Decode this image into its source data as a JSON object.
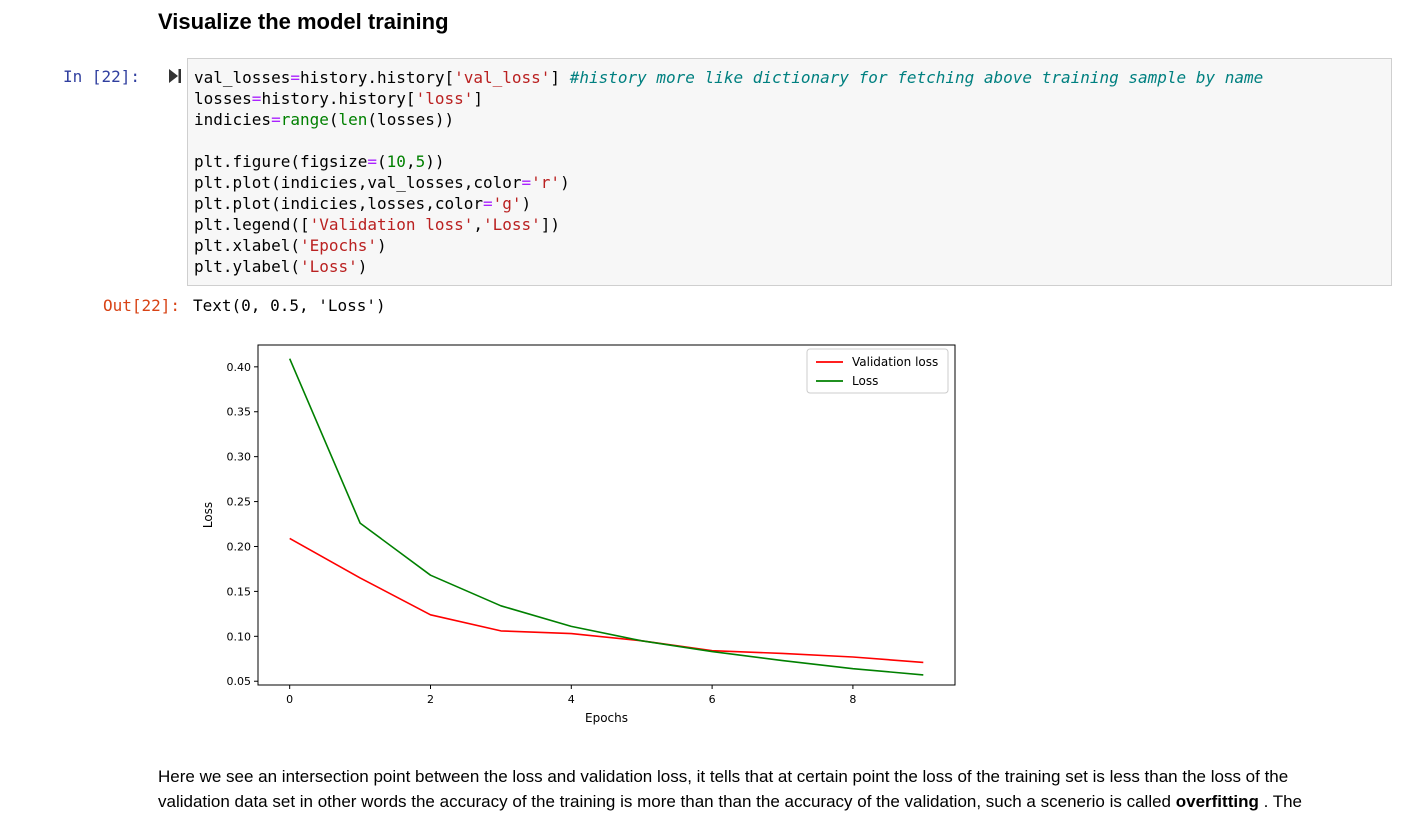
{
  "heading": "Visualize the model training",
  "cell": {
    "in_prompt": "In [22]:",
    "out_prompt": "Out[22]:",
    "output_text": "Text(0, 0.5, 'Loss')",
    "code_lines": [
      [
        [
          "t",
          "val_losses"
        ],
        [
          "o",
          "="
        ],
        [
          "t",
          "history.history["
        ],
        [
          "s",
          "'val_loss'"
        ],
        [
          "t",
          "] "
        ],
        [
          "c",
          "#history more like dictionary for fetching above training sample by name"
        ]
      ],
      [
        [
          "t",
          "losses"
        ],
        [
          "o",
          "="
        ],
        [
          "t",
          "history.history["
        ],
        [
          "s",
          "'loss'"
        ],
        [
          "t",
          "]"
        ]
      ],
      [
        [
          "t",
          "indicies"
        ],
        [
          "o",
          "="
        ],
        [
          "b",
          "range"
        ],
        [
          "t",
          "("
        ],
        [
          "b",
          "len"
        ],
        [
          "t",
          "(losses))"
        ]
      ],
      [
        [
          "t",
          ""
        ]
      ],
      [
        [
          "t",
          "plt.figure(figsize"
        ],
        [
          "o",
          "="
        ],
        [
          "t",
          "("
        ],
        [
          "n",
          "10"
        ],
        [
          "t",
          ","
        ],
        [
          "n",
          "5"
        ],
        [
          "t",
          "))"
        ]
      ],
      [
        [
          "t",
          "plt.plot(indicies,val_losses,color"
        ],
        [
          "o",
          "="
        ],
        [
          "s",
          "'r'"
        ],
        [
          "t",
          ")"
        ]
      ],
      [
        [
          "t",
          "plt.plot(indicies,losses,color"
        ],
        [
          "o",
          "="
        ],
        [
          "s",
          "'g'"
        ],
        [
          "t",
          ")"
        ]
      ],
      [
        [
          "t",
          "plt.legend(["
        ],
        [
          "s",
          "'Validation loss'"
        ],
        [
          "t",
          ","
        ],
        [
          "s",
          "'Loss'"
        ],
        [
          "t",
          "])"
        ]
      ],
      [
        [
          "t",
          "plt.xlabel("
        ],
        [
          "s",
          "'Epochs'"
        ],
        [
          "t",
          ")"
        ]
      ],
      [
        [
          "t",
          "plt.ylabel("
        ],
        [
          "s",
          "'Loss'"
        ],
        [
          "t",
          ")"
        ]
      ]
    ]
  },
  "chart_data": {
    "type": "line",
    "x": [
      0,
      1,
      2,
      3,
      4,
      5,
      6,
      7,
      8,
      9
    ],
    "series": [
      {
        "name": "Validation loss",
        "color": "#ff0000",
        "values": [
          0.209,
          0.165,
          0.124,
          0.106,
          0.103,
          0.095,
          0.084,
          0.081,
          0.077,
          0.071
        ]
      },
      {
        "name": "Loss",
        "color": "#008000",
        "values": [
          0.409,
          0.226,
          0.168,
          0.134,
          0.111,
          0.095,
          0.083,
          0.073,
          0.064,
          0.057
        ]
      }
    ],
    "xlabel": "Epochs",
    "ylabel": "Loss",
    "xlim": [
      -0.45,
      9.45
    ],
    "ylim": [
      0.0458,
      0.4243
    ],
    "xticks": [
      0,
      2,
      4,
      6,
      8
    ],
    "yticks": [
      0.05,
      0.1,
      0.15,
      0.2,
      0.25,
      0.3,
      0.35,
      0.4
    ],
    "ytick_labels": [
      "0.05",
      "0.10",
      "0.15",
      "0.20",
      "0.25",
      "0.30",
      "0.35",
      "0.40"
    ],
    "legend_position": "top-right",
    "grid": false
  },
  "paragraph": {
    "text_before": "Here we see an intersection point between the loss and validation loss, it tells that at certain point the loss of the training set is less than the loss of the validation data set in other words the accuracy of the training is more than than the accuracy of the validation, such a scenerio is called ",
    "bold": "overfitting",
    "text_after": " . The"
  }
}
